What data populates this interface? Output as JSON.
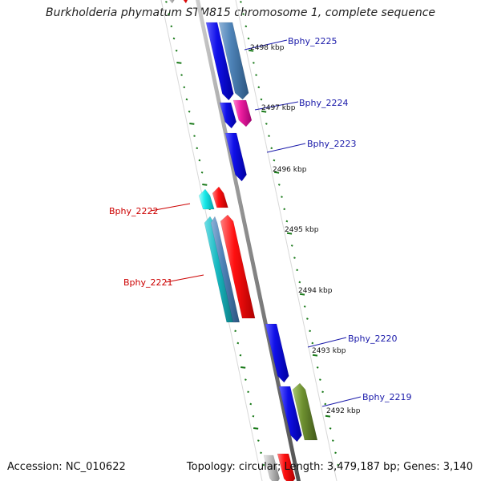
{
  "title": "Burkholderia phymatum STM815 chromosome 1, complete sequence",
  "footer": {
    "accession": "Accession: NC_010622",
    "summary": "Topology: circular; Length: 3,479,187 bp; Genes: 3,140"
  },
  "colors": {
    "backbone": "#8a8a8a",
    "forward_label": "#1a1aaa",
    "reverse_label": "#cc0000",
    "tick": "#1a7a1a",
    "blue": "#1010e8",
    "steelblue": "#4f84b8",
    "magenta": "#ee1ea0",
    "cyan": "#18e8e8",
    "teal": "#18b8c0",
    "red": "#ff1010",
    "olive": "#6e9030",
    "gray": "#b8b8b8"
  },
  "scale_labels": [
    "2498 kbp",
    "2497 kbp",
    "2496 kbp",
    "2495 kbp",
    "2494 kbp",
    "2493 kbp",
    "2492 kbp"
  ],
  "gene_labels": [
    {
      "text": "Bphy_2225",
      "strand": "forward"
    },
    {
      "text": "Bphy_2224",
      "strand": "forward"
    },
    {
      "text": "Bphy_2223",
      "strand": "forward"
    },
    {
      "text": "Bphy_2222",
      "strand": "reverse"
    },
    {
      "text": "Bphy_2221",
      "strand": "reverse"
    },
    {
      "text": "Bphy_2220",
      "strand": "forward"
    },
    {
      "text": "Bphy_2219",
      "strand": "forward"
    }
  ]
}
